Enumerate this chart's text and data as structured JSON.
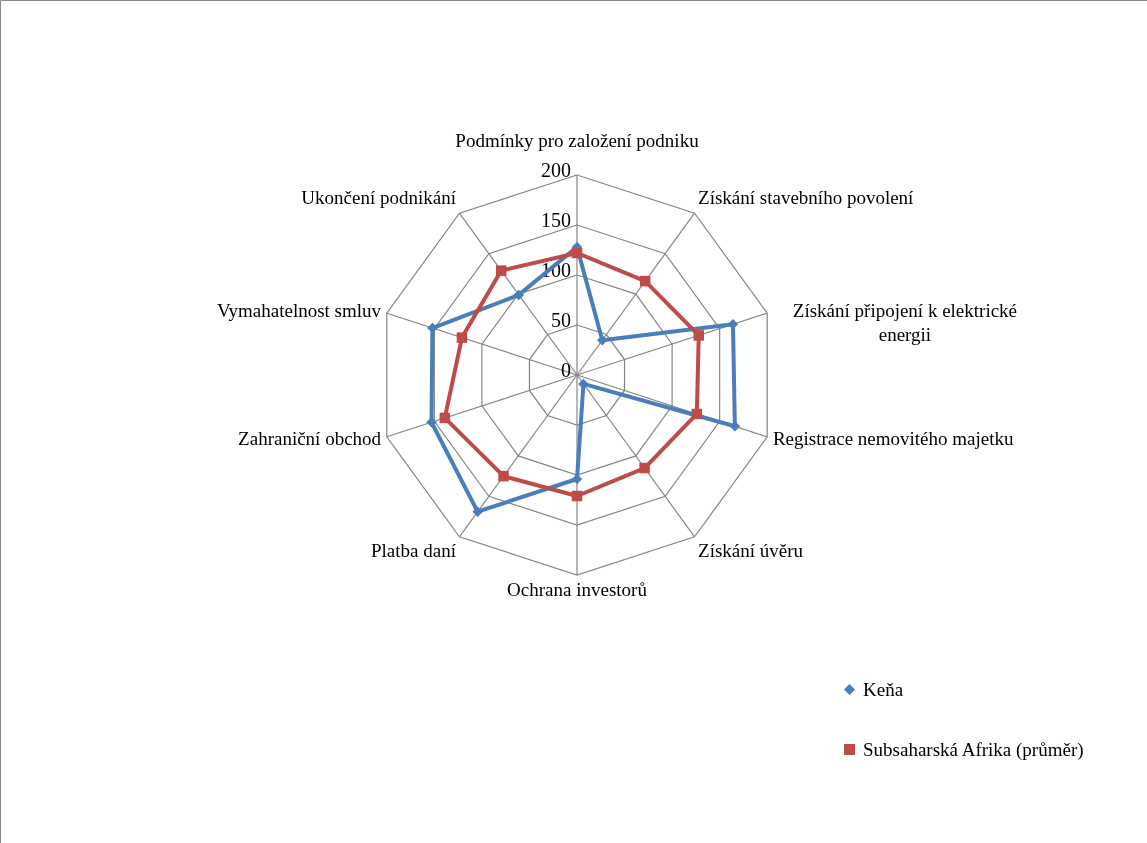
{
  "chart_data": {
    "type": "radar",
    "categories": [
      "Podmínky pro založení podniku",
      "Získání stavebního povolení",
      "Získání připojení k elektrické energii",
      "Registrace nemovitého majetku",
      "Získání úvěru",
      "Ochrana investorů",
      "Platba daní",
      "Zahraniční obchod",
      "Vymahatelnost smluv",
      "Ukončení podnikání"
    ],
    "series": [
      {
        "name": "Keňa",
        "color": "#4a7ebb",
        "marker": "diamond",
        "values": [
          128,
          43,
          164,
          166,
          11,
          104,
          169,
          153,
          152,
          99
        ]
      },
      {
        "name": "Subsaharská Afrika (průměr)",
        "color": "#be4b48",
        "marker": "square",
        "values": [
          122,
          116,
          128,
          126,
          115,
          121,
          125,
          139,
          121,
          129
        ]
      }
    ],
    "ylim": [
      0,
      200
    ],
    "yticks": [
      0,
      50,
      100,
      150,
      200
    ],
    "grid": true,
    "legend": "bottom right"
  }
}
